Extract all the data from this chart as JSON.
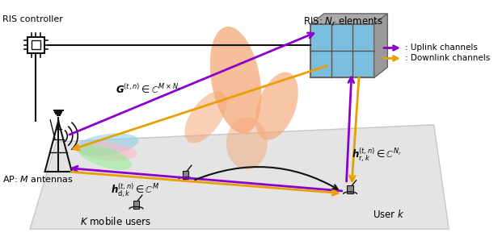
{
  "uplink_color": "#8B00CC",
  "downlink_color": "#E8A000",
  "black_color": "#111111",
  "ris_label": "RIS: $N_r$ elements",
  "ap_label": "AP: $M$ antennas",
  "controller_label": "RIS controller",
  "G_label": "$\\boldsymbol{G}^{(t,n)} \\in \\mathbb{C}^{M\\times N_r}$",
  "hd_label": "$\\boldsymbol{h}^{(t,n)}_{\\mathrm{d},k} \\in \\mathbb{C}^{M}$",
  "hr_label": "$\\boldsymbol{h}^{(t,n)}_{\\mathrm{r},k} \\in \\mathbb{C}^{N_r}$",
  "users_label": "$K$ mobile users",
  "user_k_label": "User $k$",
  "uplink_legend": ": Uplink channels",
  "downlink_legend": ": Downlink channels"
}
